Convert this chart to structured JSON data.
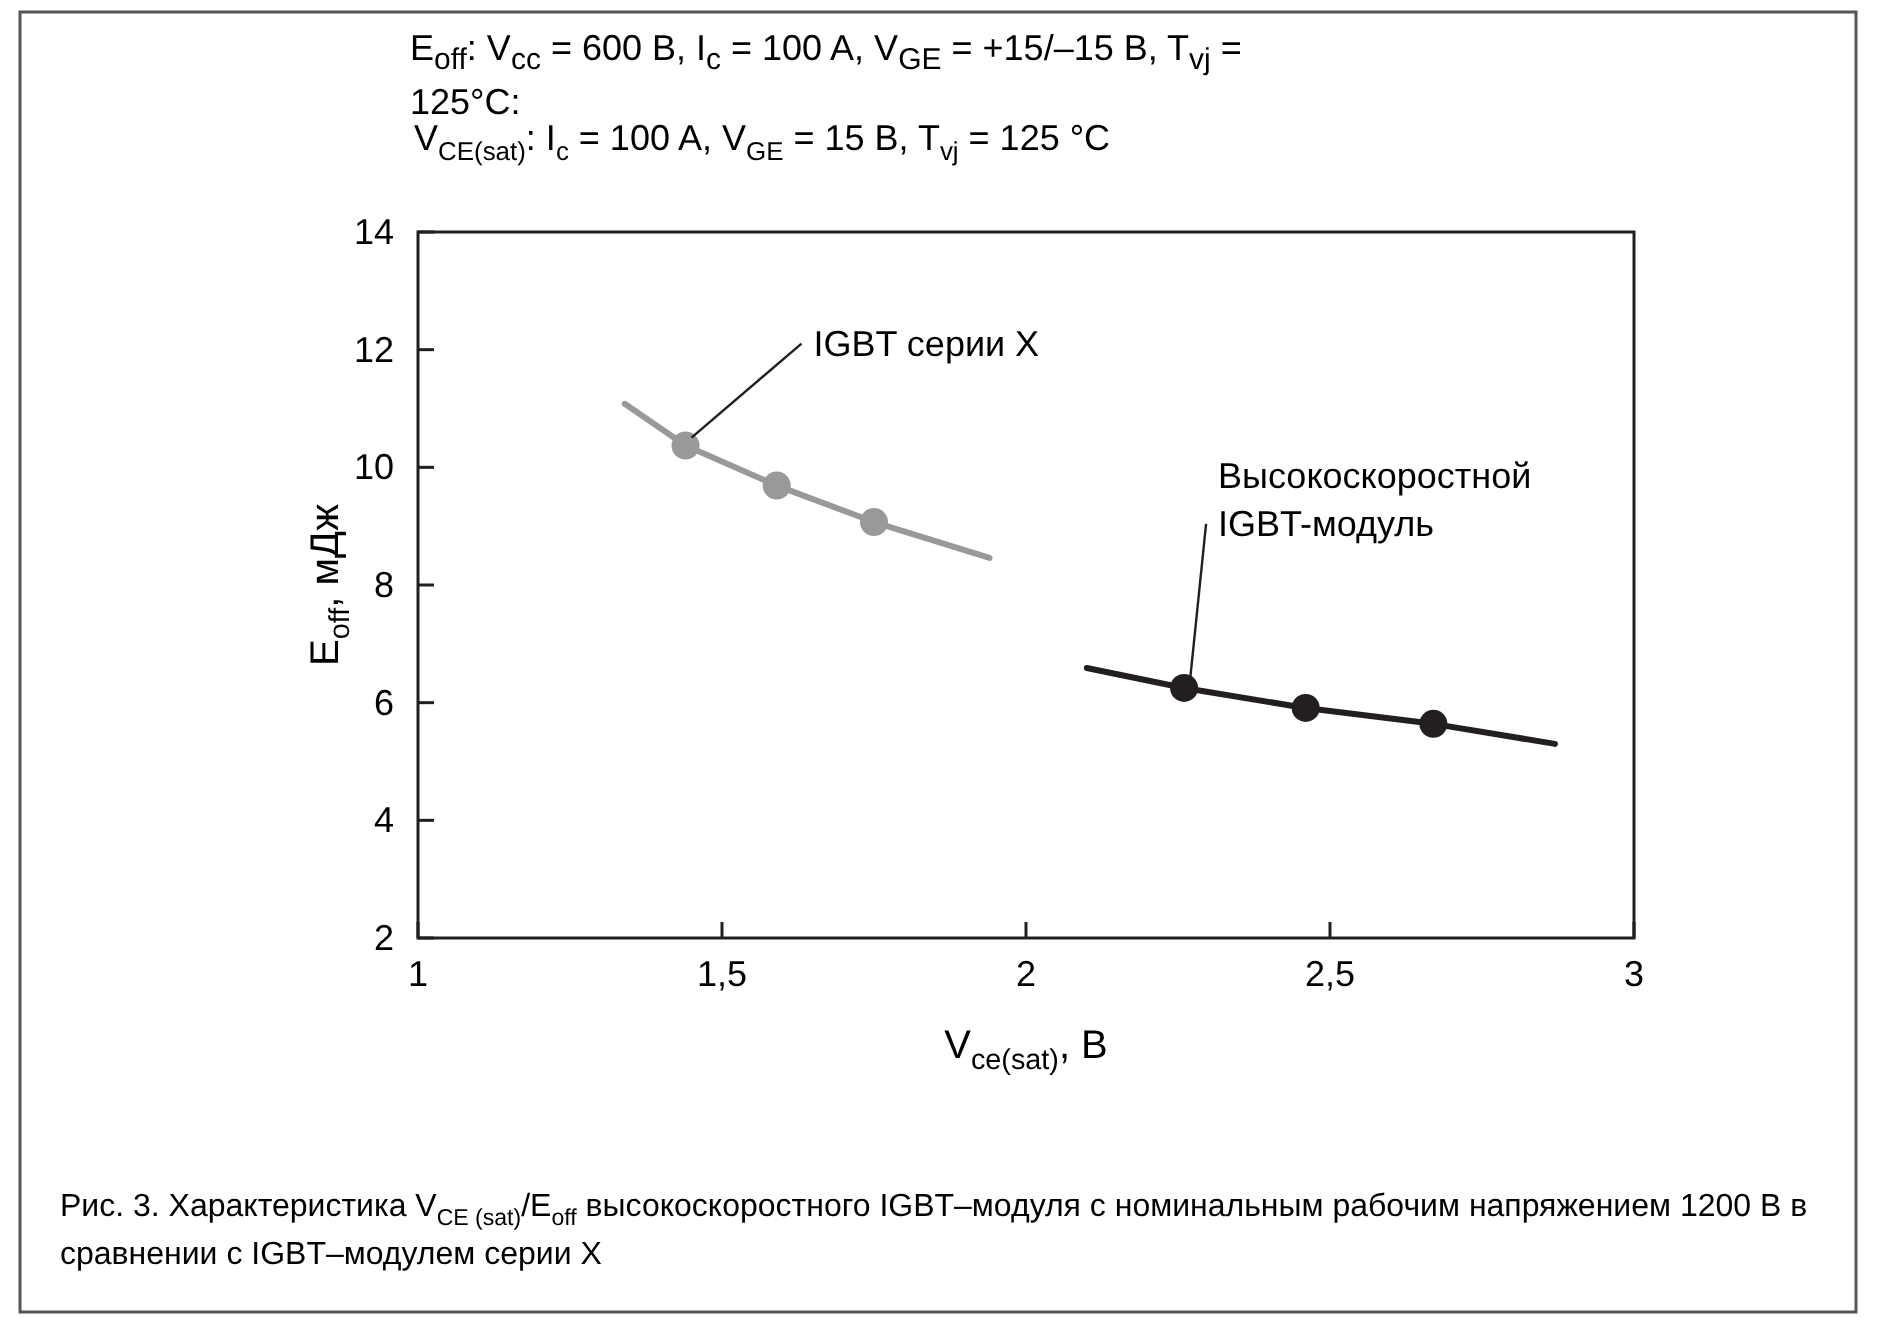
{
  "chart_data": {
    "type": "scatter",
    "title": "E$_{off}$: V$_{cc}$ = 600 B, I$_{c}$ = 100 A, V$_{GE}$ = +15/–15 B, T$_{vj}$ = 125°C:",
    "subtitle": "V$_{CE(sat)}$: I$_{c}$ = 100 A, V$_{GE}$ = 15 B, T$_{vj}$ = 125 °C",
    "xlabel": "V$_{ce(sat)}$, B",
    "ylabel": "E$_{off}$, мДж",
    "annotations": [
      "Рис. 3. Характеристика V$_{CE (sat)}$/E$_{off}$ высокоскоростного IGBT–модуля с номинальным рабочим напряжением 1200 В в сравнении с IGBT–модулем серии X"
    ],
    "xlim": [
      1,
      3
    ],
    "ylim": [
      2,
      14
    ],
    "xticks": [
      1,
      {
        "value": 1.5,
        "label": "1,5"
      },
      2,
      {
        "value": 2.5,
        "label": "2,5"
      },
      3
    ],
    "yticks": [
      2,
      4,
      6,
      8,
      10,
      12,
      14
    ],
    "grid": false,
    "series": [
      {
        "type": "line",
        "marker": "none",
        "color": "#999999",
        "x": [
          1.34,
          1.44,
          1.59,
          1.75,
          1.94
        ],
        "values": [
          11.08,
          10.37,
          9.69,
          9.07,
          8.46
        ]
      },
      {
        "marker": "circle",
        "name": "IGBT серии X",
        "color": "#999999",
        "x": [
          1.44,
          1.59,
          1.75
        ],
        "values": [
          10.37,
          9.69,
          9.07
        ]
      },
      {
        "type": "line",
        "marker": "none",
        "color": "#231f20",
        "x": [
          2.1,
          2.26,
          2.46,
          2.67,
          2.87
        ],
        "values": [
          6.59,
          6.25,
          5.91,
          5.64,
          5.3
        ]
      },
      {
        "marker": "circle",
        "name": "Высокоскоростной IGBT-модуль",
        "color": "#231f20",
        "x": [
          2.26,
          2.46,
          2.67
        ],
        "values": [
          6.25,
          5.91,
          5.64
        ]
      }
    ]
  }
}
